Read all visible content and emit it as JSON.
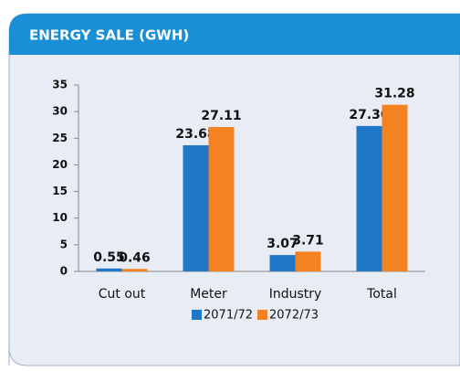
{
  "chart_data": {
    "type": "bar",
    "title": "ENERGY SALE (GWH)",
    "categories": [
      "Cut out",
      "Meter",
      "Industry",
      "Total"
    ],
    "series": [
      {
        "name": "2071/72",
        "color": "#1f77c9",
        "values": [
          0.55,
          23.68,
          3.07,
          27.3
        ],
        "value_labels": [
          "0.55",
          "23.68",
          "3.07",
          "27.30"
        ]
      },
      {
        "name": "2072/73",
        "color": "#f58220",
        "values": [
          0.46,
          27.11,
          3.71,
          31.28
        ],
        "value_labels": [
          "0.46",
          "27.11",
          "3.71",
          "31.28"
        ]
      }
    ],
    "ylim": [
      0,
      35
    ],
    "yticks": [
      0,
      5,
      10,
      15,
      20,
      25,
      30,
      35
    ]
  }
}
